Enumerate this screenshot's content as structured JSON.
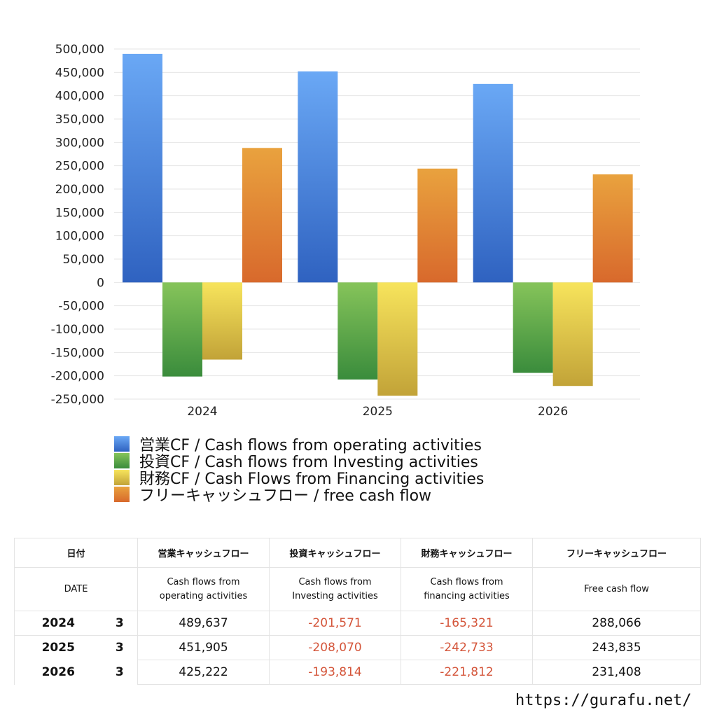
{
  "chart_data": {
    "type": "bar",
    "categories": [
      "2024",
      "2025",
      "2026"
    ],
    "series": [
      {
        "name": "営業CF / Cash flows from operating activities",
        "values": [
          489637,
          451905,
          425222
        ],
        "color_top": "#6aa8f5",
        "color_bottom": "#2f62c0"
      },
      {
        "name": "投資CF / Cash flows from Investing activities",
        "values": [
          -201571,
          -208070,
          -193814
        ],
        "color_top": "#86c45a",
        "color_bottom": "#3a8c3c"
      },
      {
        "name": "財務CF / Cash Flows from Financing activities",
        "values": [
          -165321,
          -242733,
          -221812
        ],
        "color_top": "#f7e45c",
        "color_bottom": "#c2a338"
      },
      {
        "name": "フリーキャッシュフロー / free cash flow",
        "values": [
          288066,
          243835,
          231408
        ],
        "color_top": "#e9a23e",
        "color_bottom": "#d8692c"
      }
    ],
    "ylim": [
      -250000,
      500000
    ],
    "yticks": [
      "500,000",
      "450,000",
      "400,000",
      "350,000",
      "300,000",
      "250,000",
      "200,000",
      "150,000",
      "100,000",
      "50,000",
      "0",
      "-50,000",
      "-100,000",
      "-150,000",
      "-200,000",
      "-250,000"
    ],
    "grid": true,
    "legend": "bottom"
  },
  "table": {
    "headers": [
      "日付",
      "営業キャッシュフロー",
      "投資キャッシュフロー",
      "財務キャッシュフロー",
      "フリーキャッシュフロー"
    ],
    "subheaders": [
      "DATE",
      "Cash flows from\noperating activities",
      "Cash flows from\nInvesting activities",
      "Cash flows from\nfinancing activities",
      "Free cash flow"
    ],
    "rows": [
      {
        "year": "2024",
        "month": "3",
        "operating": "489,637",
        "investing": "-201,571",
        "financing": "-165,321",
        "free": "288,066"
      },
      {
        "year": "2025",
        "month": "3",
        "operating": "451,905",
        "investing": "-208,070",
        "financing": "-242,733",
        "free": "243,835"
      },
      {
        "year": "2026",
        "month": "3",
        "operating": "425,222",
        "investing": "-193,814",
        "financing": "-221,812",
        "free": "231,408"
      }
    ]
  },
  "site_url": "https://gurafu.net/"
}
